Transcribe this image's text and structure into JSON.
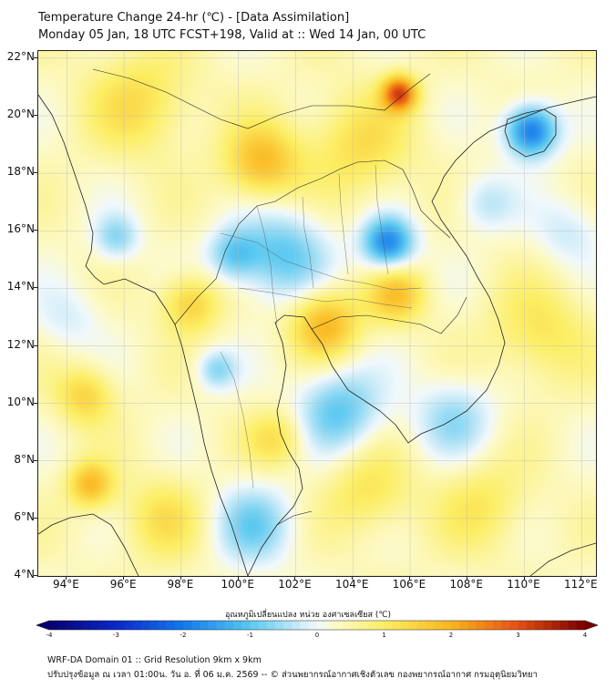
{
  "header": {
    "title_line1": "Temperature Change 24-hr (℃) - [Data Assimilation]",
    "title_line2": "Monday 05 Jan, 18 UTC FCST+198, Valid at :: Wed 14 Jan, 00 UTC"
  },
  "map": {
    "lat_labels": [
      "22°N",
      "20°N",
      "18°N",
      "16°N",
      "14°N",
      "12°N",
      "10°N",
      "8°N",
      "6°N",
      "4°N"
    ],
    "lon_labels": [
      "94°E",
      "96°E",
      "98°E",
      "100°E",
      "102°E",
      "104°E",
      "106°E",
      "108°E",
      "110°E",
      "112°E"
    ],
    "lat_range": [
      4,
      22.25
    ],
    "lon_range": [
      93,
      112.5
    ],
    "anomalies": [
      {
        "lon": 105.6,
        "lat": 20.8,
        "value": 2.6,
        "spread": 0.6
      },
      {
        "lon": 110.2,
        "lat": 19.5,
        "value": -2.4,
        "spread": 0.9
      },
      {
        "lon": 105.2,
        "lat": 15.6,
        "value": -2.2,
        "spread": 0.9
      },
      {
        "lon": 101.5,
        "lat": 15.2,
        "value": -1.3,
        "spread": 1.6
      },
      {
        "lon": 99.8,
        "lat": 15.2,
        "value": -1.1,
        "spread": 0.9
      },
      {
        "lon": 100.8,
        "lat": 18.4,
        "value": 1.5,
        "spread": 1.3
      },
      {
        "lon": 103.0,
        "lat": 12.8,
        "value": 1.6,
        "spread": 1.2
      },
      {
        "lon": 105.5,
        "lat": 13.8,
        "value": 1.3,
        "spread": 1.0
      },
      {
        "lon": 104.2,
        "lat": 19.0,
        "value": 0.9,
        "spread": 1.8
      },
      {
        "lon": 96.5,
        "lat": 20.5,
        "value": 0.9,
        "spread": 1.8
      },
      {
        "lon": 94.8,
        "lat": 7.2,
        "value": 1.5,
        "spread": 0.8
      },
      {
        "lon": 94.6,
        "lat": 10.3,
        "value": 1.1,
        "spread": 1.0
      },
      {
        "lon": 95.7,
        "lat": 15.8,
        "value": -1.0,
        "spread": 0.8
      },
      {
        "lon": 94.0,
        "lat": 13.0,
        "value": -0.5,
        "spread": 1.2
      },
      {
        "lon": 103.5,
        "lat": 9.8,
        "value": -1.3,
        "spread": 1.5
      },
      {
        "lon": 107.5,
        "lat": 9.5,
        "value": -0.9,
        "spread": 1.4
      },
      {
        "lon": 100.5,
        "lat": 5.8,
        "value": -1.1,
        "spread": 1.4
      },
      {
        "lon": 99.2,
        "lat": 11.2,
        "value": -1.0,
        "spread": 0.7
      },
      {
        "lon": 101.3,
        "lat": 8.8,
        "value": 0.9,
        "spread": 1.0
      },
      {
        "lon": 104.5,
        "lat": 7.0,
        "value": 0.8,
        "spread": 1.5
      },
      {
        "lon": 108.5,
        "lat": 6.5,
        "value": 0.7,
        "spread": 1.6
      },
      {
        "lon": 110.5,
        "lat": 12.5,
        "value": 0.8,
        "spread": 1.7
      },
      {
        "lon": 97.3,
        "lat": 6.0,
        "value": 0.8,
        "spread": 1.4
      },
      {
        "lon": 108.6,
        "lat": 17.0,
        "value": -0.7,
        "spread": 1.0
      },
      {
        "lon": 111.5,
        "lat": 16.0,
        "value": -0.6,
        "spread": 1.2
      },
      {
        "lon": 98.3,
        "lat": 13.5,
        "value": 1.2,
        "spread": 1.0
      }
    ]
  },
  "colorbar": {
    "label": "อุณหภูมิเปลี่ยนแปลง หน่วย องศาเซลเซียส (℃)",
    "ticks": [
      "-4",
      "-3",
      "-2",
      "-1",
      "0",
      "1",
      "2",
      "3",
      "4"
    ],
    "min": -4,
    "max": 4
  },
  "footer": {
    "line1": "WRF-DA Domain 01 :: Grid Resolution 9km x 9km",
    "line2": "ปรับปรุงข้อมูล ณ เวลา 01:00น. วัน อ. ที่ 06 ม.ค. 2569 -- © ส่วนพยากรณ์อากาศเชิงตัวเลข กองพยากรณ์อากาศ กรมอุตุนิยมวิทยา"
  }
}
